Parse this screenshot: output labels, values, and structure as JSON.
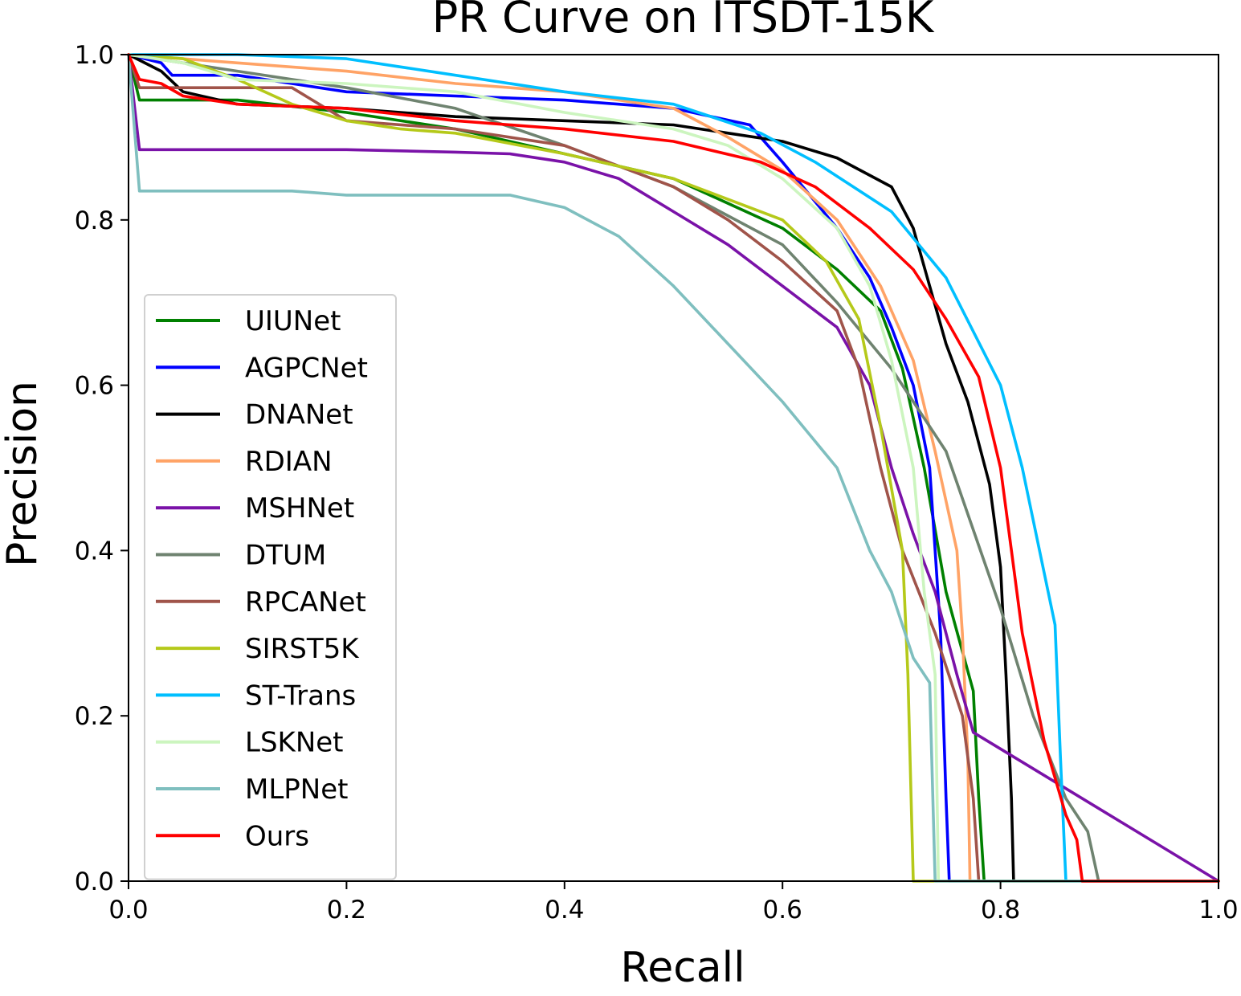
{
  "chart_data": {
    "type": "line",
    "title": "PR Curve on ITSDT-15K",
    "xlabel": "Recall",
    "ylabel": "Precision",
    "xlim": [
      0,
      1
    ],
    "ylim": [
      0,
      1
    ],
    "x_ticks": [
      "0.0",
      "0.2",
      "0.4",
      "0.6",
      "0.8",
      "1.0"
    ],
    "y_ticks": [
      "0.0",
      "0.2",
      "0.4",
      "0.6",
      "0.8",
      "1.0"
    ],
    "grid": false,
    "legend_position": "center-left",
    "series": [
      {
        "name": "UIUNet",
        "color": "#008000",
        "points": [
          [
            0,
            1.0
          ],
          [
            0.01,
            0.945
          ],
          [
            0.1,
            0.945
          ],
          [
            0.2,
            0.93
          ],
          [
            0.3,
            0.91
          ],
          [
            0.4,
            0.88
          ],
          [
            0.5,
            0.85
          ],
          [
            0.55,
            0.82
          ],
          [
            0.6,
            0.79
          ],
          [
            0.65,
            0.74
          ],
          [
            0.69,
            0.69
          ],
          [
            0.71,
            0.62
          ],
          [
            0.73,
            0.5
          ],
          [
            0.75,
            0.35
          ],
          [
            0.775,
            0.23
          ],
          [
            0.78,
            0.1
          ],
          [
            0.785,
            0.0
          ],
          [
            1.0,
            0.0
          ]
        ]
      },
      {
        "name": "AGPCNet",
        "color": "#0000ff",
        "points": [
          [
            0,
            1.0
          ],
          [
            0.03,
            0.99
          ],
          [
            0.04,
            0.975
          ],
          [
            0.1,
            0.975
          ],
          [
            0.2,
            0.955
          ],
          [
            0.3,
            0.95
          ],
          [
            0.4,
            0.945
          ],
          [
            0.5,
            0.935
          ],
          [
            0.57,
            0.915
          ],
          [
            0.6,
            0.87
          ],
          [
            0.65,
            0.79
          ],
          [
            0.68,
            0.73
          ],
          [
            0.7,
            0.67
          ],
          [
            0.72,
            0.6
          ],
          [
            0.735,
            0.5
          ],
          [
            0.745,
            0.3
          ],
          [
            0.75,
            0.1
          ],
          [
            0.753,
            0.0
          ],
          [
            1.0,
            0.0
          ]
        ]
      },
      {
        "name": "DNANet",
        "color": "#000000",
        "points": [
          [
            0,
            1.0
          ],
          [
            0.03,
            0.98
          ],
          [
            0.05,
            0.955
          ],
          [
            0.1,
            0.94
          ],
          [
            0.2,
            0.935
          ],
          [
            0.3,
            0.925
          ],
          [
            0.4,
            0.92
          ],
          [
            0.5,
            0.915
          ],
          [
            0.6,
            0.895
          ],
          [
            0.65,
            0.875
          ],
          [
            0.7,
            0.84
          ],
          [
            0.72,
            0.79
          ],
          [
            0.735,
            0.72
          ],
          [
            0.75,
            0.65
          ],
          [
            0.77,
            0.58
          ],
          [
            0.79,
            0.48
          ],
          [
            0.8,
            0.38
          ],
          [
            0.805,
            0.25
          ],
          [
            0.81,
            0.1
          ],
          [
            0.812,
            0.0
          ],
          [
            1.0,
            0.0
          ]
        ]
      },
      {
        "name": "RDIAN",
        "color": "#ffa366",
        "points": [
          [
            0,
            1.0
          ],
          [
            0.1,
            0.99
          ],
          [
            0.2,
            0.98
          ],
          [
            0.3,
            0.965
          ],
          [
            0.4,
            0.955
          ],
          [
            0.5,
            0.935
          ],
          [
            0.55,
            0.9
          ],
          [
            0.6,
            0.86
          ],
          [
            0.65,
            0.8
          ],
          [
            0.69,
            0.72
          ],
          [
            0.72,
            0.63
          ],
          [
            0.74,
            0.52
          ],
          [
            0.76,
            0.4
          ],
          [
            0.765,
            0.3
          ],
          [
            0.77,
            0.15
          ],
          [
            0.772,
            0.0
          ],
          [
            1.0,
            0.0
          ]
        ]
      },
      {
        "name": "MSHNet",
        "color": "#7a12a8",
        "points": [
          [
            0,
            1.0
          ],
          [
            0.01,
            0.885
          ],
          [
            0.1,
            0.885
          ],
          [
            0.2,
            0.885
          ],
          [
            0.3,
            0.882
          ],
          [
            0.35,
            0.88
          ],
          [
            0.4,
            0.87
          ],
          [
            0.45,
            0.85
          ],
          [
            0.5,
            0.81
          ],
          [
            0.55,
            0.77
          ],
          [
            0.6,
            0.72
          ],
          [
            0.65,
            0.67
          ],
          [
            0.68,
            0.6
          ],
          [
            0.7,
            0.5
          ],
          [
            0.72,
            0.42
          ],
          [
            0.74,
            0.35
          ],
          [
            0.76,
            0.25
          ],
          [
            0.775,
            0.18
          ],
          [
            1.0,
            0.0
          ]
        ]
      },
      {
        "name": "DTUM",
        "color": "#6f8370",
        "points": [
          [
            0,
            1.0
          ],
          [
            0.05,
            0.99
          ],
          [
            0.1,
            0.98
          ],
          [
            0.2,
            0.96
          ],
          [
            0.3,
            0.935
          ],
          [
            0.4,
            0.89
          ],
          [
            0.5,
            0.84
          ],
          [
            0.6,
            0.77
          ],
          [
            0.65,
            0.7
          ],
          [
            0.7,
            0.62
          ],
          [
            0.75,
            0.52
          ],
          [
            0.8,
            0.33
          ],
          [
            0.83,
            0.2
          ],
          [
            0.86,
            0.1
          ],
          [
            0.88,
            0.06
          ],
          [
            0.89,
            0.0
          ],
          [
            1.0,
            0.0
          ]
        ]
      },
      {
        "name": "RPCANet",
        "color": "#a0544a",
        "points": [
          [
            0,
            1.0
          ],
          [
            0.01,
            0.96
          ],
          [
            0.15,
            0.96
          ],
          [
            0.2,
            0.92
          ],
          [
            0.3,
            0.91
          ],
          [
            0.4,
            0.89
          ],
          [
            0.5,
            0.84
          ],
          [
            0.55,
            0.8
          ],
          [
            0.6,
            0.75
          ],
          [
            0.65,
            0.69
          ],
          [
            0.67,
            0.62
          ],
          [
            0.69,
            0.5
          ],
          [
            0.71,
            0.4
          ],
          [
            0.74,
            0.3
          ],
          [
            0.765,
            0.2
          ],
          [
            0.775,
            0.1
          ],
          [
            0.78,
            0.0
          ],
          [
            1.0,
            0.0
          ]
        ]
      },
      {
        "name": "SIRST5K",
        "color": "#b5c91a",
        "points": [
          [
            0,
            1.0
          ],
          [
            0.05,
            0.995
          ],
          [
            0.1,
            0.97
          ],
          [
            0.15,
            0.94
          ],
          [
            0.2,
            0.92
          ],
          [
            0.25,
            0.91
          ],
          [
            0.3,
            0.905
          ],
          [
            0.4,
            0.88
          ],
          [
            0.5,
            0.85
          ],
          [
            0.6,
            0.8
          ],
          [
            0.64,
            0.75
          ],
          [
            0.67,
            0.68
          ],
          [
            0.69,
            0.55
          ],
          [
            0.71,
            0.4
          ],
          [
            0.715,
            0.25
          ],
          [
            0.718,
            0.1
          ],
          [
            0.72,
            0.0
          ],
          [
            1.0,
            0.0
          ]
        ]
      },
      {
        "name": "ST-Trans",
        "color": "#00bfff",
        "points": [
          [
            0,
            1.0
          ],
          [
            0.1,
            1.0
          ],
          [
            0.2,
            0.995
          ],
          [
            0.3,
            0.975
          ],
          [
            0.4,
            0.955
          ],
          [
            0.5,
            0.94
          ],
          [
            0.58,
            0.905
          ],
          [
            0.63,
            0.87
          ],
          [
            0.7,
            0.81
          ],
          [
            0.75,
            0.73
          ],
          [
            0.8,
            0.6
          ],
          [
            0.82,
            0.5
          ],
          [
            0.85,
            0.31
          ],
          [
            0.855,
            0.15
          ],
          [
            0.86,
            0.0
          ],
          [
            1.0,
            0.0
          ]
        ]
      },
      {
        "name": "LSKNet",
        "color": "#ccf5bf",
        "points": [
          [
            0,
            1.0
          ],
          [
            0.05,
            0.99
          ],
          [
            0.1,
            0.97
          ],
          [
            0.2,
            0.965
          ],
          [
            0.3,
            0.955
          ],
          [
            0.4,
            0.93
          ],
          [
            0.5,
            0.91
          ],
          [
            0.55,
            0.89
          ],
          [
            0.6,
            0.85
          ],
          [
            0.65,
            0.79
          ],
          [
            0.68,
            0.72
          ],
          [
            0.7,
            0.63
          ],
          [
            0.72,
            0.5
          ],
          [
            0.73,
            0.35
          ],
          [
            0.74,
            0.25
          ],
          [
            0.743,
            0.0
          ],
          [
            1.0,
            0.0
          ]
        ]
      },
      {
        "name": "MLPNet",
        "color": "#7fbfbf",
        "points": [
          [
            0,
            1.0
          ],
          [
            0.01,
            0.835
          ],
          [
            0.15,
            0.835
          ],
          [
            0.2,
            0.83
          ],
          [
            0.3,
            0.83
          ],
          [
            0.35,
            0.83
          ],
          [
            0.4,
            0.815
          ],
          [
            0.45,
            0.78
          ],
          [
            0.5,
            0.72
          ],
          [
            0.55,
            0.65
          ],
          [
            0.6,
            0.58
          ],
          [
            0.65,
            0.5
          ],
          [
            0.68,
            0.4
          ],
          [
            0.7,
            0.35
          ],
          [
            0.72,
            0.27
          ],
          [
            0.735,
            0.24
          ],
          [
            0.74,
            0.0
          ],
          [
            1.0,
            0.0
          ]
        ]
      },
      {
        "name": "Ours",
        "color": "#ff0000",
        "points": [
          [
            0,
            1.0
          ],
          [
            0.01,
            0.97
          ],
          [
            0.03,
            0.965
          ],
          [
            0.05,
            0.95
          ],
          [
            0.1,
            0.94
          ],
          [
            0.2,
            0.935
          ],
          [
            0.3,
            0.92
          ],
          [
            0.4,
            0.91
          ],
          [
            0.5,
            0.895
          ],
          [
            0.58,
            0.87
          ],
          [
            0.63,
            0.84
          ],
          [
            0.68,
            0.79
          ],
          [
            0.72,
            0.74
          ],
          [
            0.75,
            0.68
          ],
          [
            0.78,
            0.61
          ],
          [
            0.8,
            0.5
          ],
          [
            0.81,
            0.4
          ],
          [
            0.82,
            0.3
          ],
          [
            0.84,
            0.17
          ],
          [
            0.86,
            0.08
          ],
          [
            0.87,
            0.05
          ],
          [
            0.875,
            0.0
          ],
          [
            1.0,
            0.0
          ]
        ]
      }
    ]
  }
}
